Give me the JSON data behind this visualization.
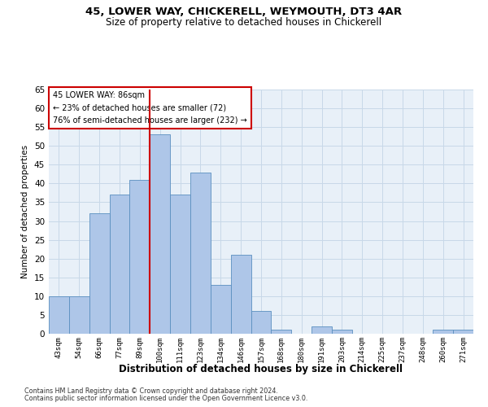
{
  "title1": "45, LOWER WAY, CHICKERELL, WEYMOUTH, DT3 4AR",
  "title2": "Size of property relative to detached houses in Chickerell",
  "xlabel": "Distribution of detached houses by size in Chickerell",
  "ylabel": "Number of detached properties",
  "categories": [
    "43sqm",
    "54sqm",
    "66sqm",
    "77sqm",
    "89sqm",
    "100sqm",
    "111sqm",
    "123sqm",
    "134sqm",
    "146sqm",
    "157sqm",
    "168sqm",
    "180sqm",
    "191sqm",
    "203sqm",
    "214sqm",
    "225sqm",
    "237sqm",
    "248sqm",
    "260sqm",
    "271sqm"
  ],
  "values": [
    10,
    10,
    32,
    37,
    41,
    53,
    37,
    43,
    13,
    21,
    6,
    1,
    0,
    2,
    1,
    0,
    0,
    0,
    0,
    1,
    1
  ],
  "bar_color": "#aec6e8",
  "bar_edge_color": "#5a8fc0",
  "red_line_index": 4,
  "annotation_title": "45 LOWER WAY: 86sqm",
  "annotation_line1": "← 23% of detached houses are smaller (72)",
  "annotation_line2": "76% of semi-detached houses are larger (232) →",
  "ylim": [
    0,
    65
  ],
  "footer1": "Contains HM Land Registry data © Crown copyright and database right 2024.",
  "footer2": "Contains public sector information licensed under the Open Government Licence v3.0.",
  "bg_color": "#ffffff",
  "grid_color": "#c8d8e8",
  "annotation_box_color": "#ffffff",
  "annotation_box_edge": "#cc0000",
  "red_line_color": "#cc0000"
}
